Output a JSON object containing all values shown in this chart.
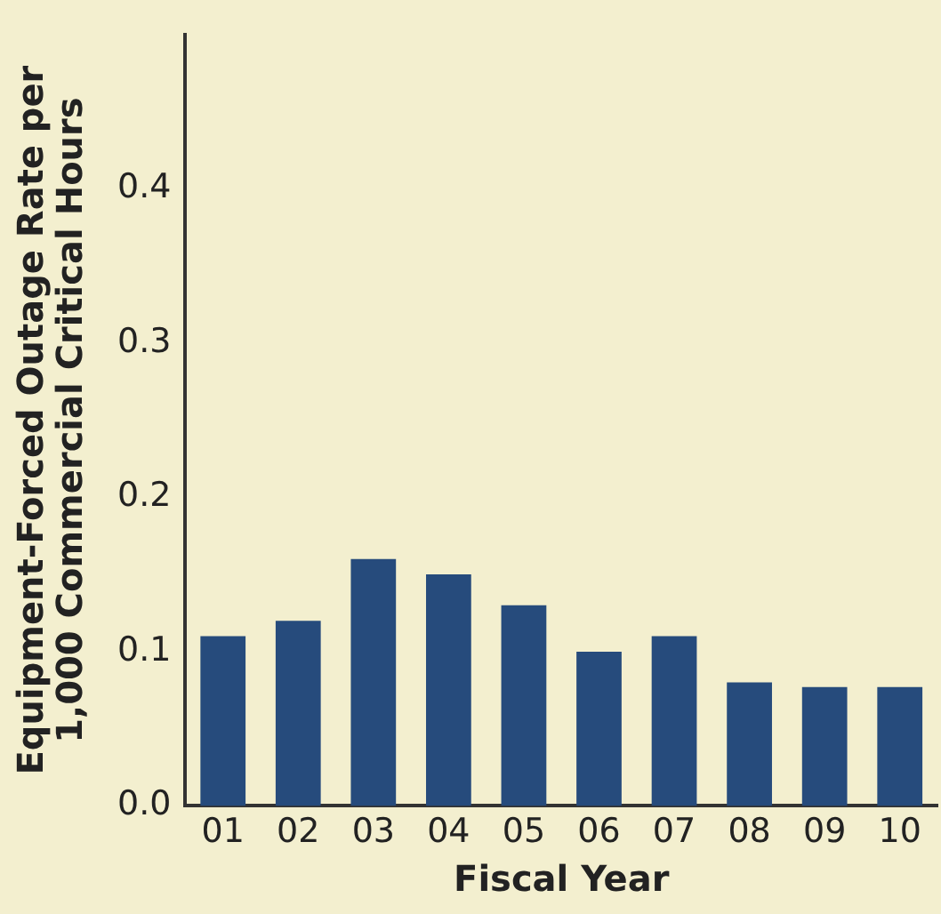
{
  "chart_data": {
    "type": "bar",
    "xlabel": "Fiscal Year",
    "ylabel": "Equipment-Forced Outage Rate per\n1,000 Commercial Critical Hours",
    "categories": [
      "01",
      "02",
      "03",
      "04",
      "05",
      "06",
      "07",
      "08",
      "09",
      "10"
    ],
    "values": [
      0.11,
      0.12,
      0.16,
      0.15,
      0.13,
      0.1,
      0.11,
      0.08,
      0.077,
      0.077
    ],
    "color": "#264b7c",
    "ylim": [
      0,
      0.5
    ],
    "yticks": [
      {
        "value": 0,
        "label": "0.0"
      },
      {
        "value": 0.1,
        "label": "0.1"
      },
      {
        "value": 0.2,
        "label": "0.2"
      },
      {
        "value": 0.3,
        "label": "0.3"
      },
      {
        "value": 0.4,
        "label": "0.4"
      }
    ],
    "grid": false,
    "legend": false
  }
}
